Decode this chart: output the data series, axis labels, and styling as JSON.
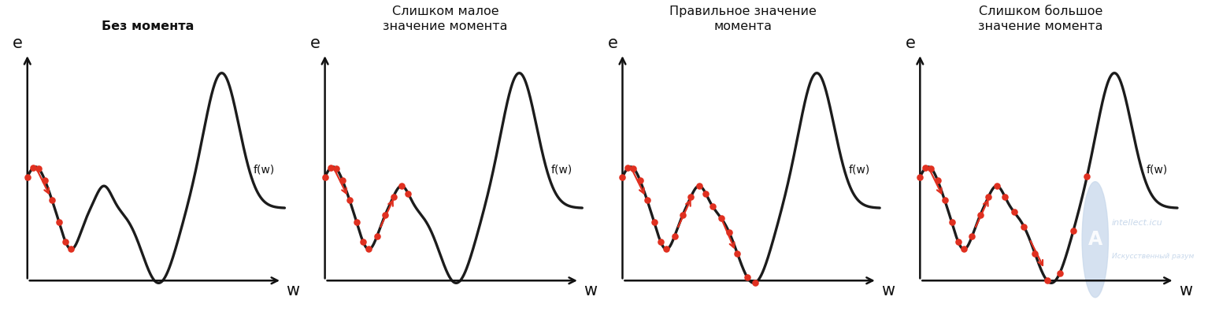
{
  "titles": [
    "Без момента",
    "Слишком малое\nзначение момента",
    "Правильное значение\nмомента",
    "Слишком большое\nзначение момента"
  ],
  "title_bold": [
    true,
    false,
    false,
    false
  ],
  "xlabel": "w",
  "ylabel": "e",
  "func_label": "f(w)",
  "curve_color": "#1c1c1c",
  "dot_color": "#e03020",
  "arrow_color": "#e03020",
  "bg_color": "#ffffff",
  "axis_color": "#111111",
  "watermark_color": "#c8d8eb",
  "watermark_text1": "intellect.icu",
  "watermark_text2": "Искусственный разум"
}
